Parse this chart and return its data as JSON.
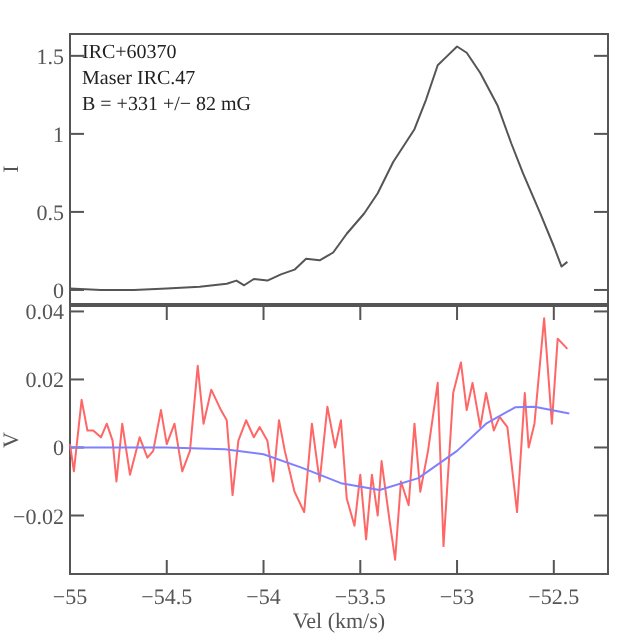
{
  "chart_data": [
    {
      "type": "line",
      "ylabel": "I",
      "xlim": [
        -55,
        -52.22
      ],
      "ylim": [
        -0.09,
        1.64
      ],
      "yticks": [
        0,
        0.5,
        1,
        1.5
      ],
      "tick_labels": "y",
      "annotations": [
        "IRC+60370",
        "Maser IRC.47",
        "B = +331 +/− 82 mG"
      ],
      "series": [
        {
          "color": "#555555",
          "x": [
            -55,
            -54.84,
            -54.67,
            -54.5,
            -54.33,
            -54.19,
            -54.14,
            -54.1,
            -54.05,
            -53.98,
            -53.91,
            -53.84,
            -53.78,
            -53.71,
            -53.64,
            -53.57,
            -53.48,
            -53.41,
            -53.33,
            -53.22,
            -53.16,
            -53.1,
            -53.05,
            -53,
            -52.95,
            -52.88,
            -52.79,
            -52.72,
            -52.66,
            -52.57,
            -52.5,
            -52.46,
            -52.43
          ],
          "values": [
            0.01,
            0,
            0,
            0.01,
            0.02,
            0.04,
            0.06,
            0.03,
            0.07,
            0.06,
            0.1,
            0.13,
            0.2,
            0.19,
            0.24,
            0.36,
            0.49,
            0.62,
            0.82,
            1.03,
            1.22,
            1.44,
            1.5,
            1.56,
            1.52,
            1.39,
            1.18,
            0.94,
            0.75,
            0.49,
            0.28,
            0.15,
            0.18
          ]
        }
      ]
    },
    {
      "type": "line",
      "xlabel": "Vel (km/s)",
      "ylabel": "V",
      "xlim": [
        -55,
        -52.22
      ],
      "xticks": [
        -55,
        -54.5,
        -54,
        -53.5,
        -53,
        -52.5
      ],
      "ylim": [
        -0.0372,
        0.0416
      ],
      "yticks": [
        -0.02,
        0,
        0.02,
        0.04
      ],
      "series": [
        {
          "color": "#ff6666",
          "x": [
            -55,
            -54.98,
            -54.94,
            -54.91,
            -54.88,
            -54.84,
            -54.81,
            -54.78,
            -54.76,
            -54.73,
            -54.69,
            -54.64,
            -54.6,
            -54.57,
            -54.53,
            -54.5,
            -54.46,
            -54.42,
            -54.38,
            -54.34,
            -54.31,
            -54.27,
            -54.22,
            -54.19,
            -54.16,
            -54.13,
            -54.09,
            -54.05,
            -54.02,
            -53.98,
            -53.95,
            -53.92,
            -53.89,
            -53.84,
            -53.79,
            -53.75,
            -53.71,
            -53.67,
            -53.63,
            -53.6,
            -53.57,
            -53.53,
            -53.5,
            -53.47,
            -53.44,
            -53.41,
            -53.39,
            -53.35,
            -53.32,
            -53.29,
            -53.25,
            -53.22,
            -53.19,
            -53.15,
            -53.1,
            -53.07,
            -53.02,
            -52.98,
            -52.95,
            -52.92,
            -52.88,
            -52.85,
            -52.81,
            -52.78,
            -52.74,
            -52.69,
            -52.65,
            -52.63,
            -52.6,
            -52.55,
            -52.51,
            -52.48,
            -52.43
          ],
          "values": [
            0.001,
            -0.007,
            0.014,
            0.005,
            0.005,
            0.003,
            0.007,
            0.002,
            -0.01,
            0.007,
            -0.008,
            0.003,
            -0.003,
            -0.001,
            0.011,
            0.001,
            0.007,
            -0.007,
            -0.001,
            0.024,
            0.007,
            0.017,
            0.011,
            0.008,
            -0.014,
            0.002,
            0.008,
            0.003,
            0.006,
            0.002,
            -0.01,
            0.008,
            -0.001,
            -0.013,
            -0.019,
            0.007,
            -0.01,
            0.012,
            0,
            0.008,
            -0.015,
            -0.023,
            -0.008,
            -0.027,
            -0.008,
            -0.02,
            -0.004,
            -0.021,
            -0.033,
            -0.01,
            -0.017,
            0.007,
            -0.013,
            -0.001,
            0.019,
            -0.029,
            0.016,
            0.025,
            0.011,
            0.019,
            0.006,
            0.016,
            0.005,
            0.009,
            0.006,
            -0.019,
            0.016,
            0,
            0.007,
            0.038,
            0.007,
            0.032,
            0.029
          ]
        },
        {
          "color": "#8080ff",
          "x": [
            -55,
            -54.5,
            -54.2,
            -54,
            -53.8,
            -53.6,
            -53.4,
            -53.2,
            -53,
            -52.85,
            -52.7,
            -52.6,
            -52.42
          ],
          "values": [
            0,
            0,
            -0.0005,
            -0.002,
            -0.006,
            -0.0105,
            -0.0125,
            -0.009,
            -0.001,
            0.007,
            0.0118,
            0.012,
            0.01
          ]
        }
      ]
    }
  ]
}
